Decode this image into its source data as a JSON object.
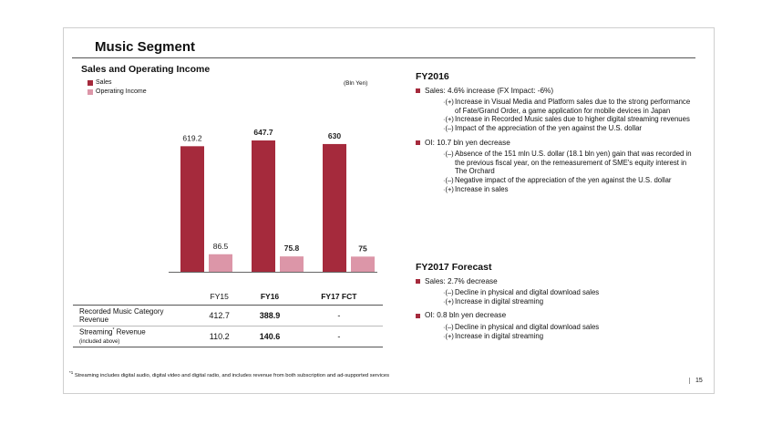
{
  "page": {
    "title": "Music Segment",
    "page_number": "15"
  },
  "chart_section": {
    "subtitle": "Sales and Operating Income",
    "unit": "(Bln Yen)"
  },
  "chart_data": {
    "type": "bar",
    "categories": [
      "FY15",
      "FY16",
      "FY17 FCT"
    ],
    "series": [
      {
        "name": "Sales",
        "values": [
          619.2,
          647.7,
          630
        ],
        "labels": [
          "619.2",
          "647.7",
          "630"
        ],
        "color": "#a52a3c"
      },
      {
        "name": "Operating Income",
        "values": [
          86.5,
          75.8,
          75
        ],
        "labels": [
          "86.5",
          "75.8",
          "75"
        ],
        "color": "#dc96a8"
      }
    ],
    "bold_label_categories": [
      "FY16",
      "FY17 FCT"
    ],
    "ylim": [
      0,
      700
    ],
    "grid": false,
    "legend": "top-left"
  },
  "table": {
    "headers": [
      "",
      "FY15",
      "FY16",
      "FY17 FCT"
    ],
    "rows": [
      {
        "label": "Recorded Music Category Revenue",
        "note": "",
        "values": [
          "412.7",
          "388.9",
          "-"
        ]
      },
      {
        "label": "Streaming",
        "sup": "*",
        "label_tail": " Revenue",
        "note": "(included above)",
        "values": [
          "110.2",
          "140.6",
          "-"
        ]
      }
    ]
  },
  "fy2016": {
    "heading": "FY2016",
    "bullets": [
      {
        "text": "Sales: 4.6% increase (FX Impact:  -6%)",
        "items": [
          {
            "mark": "·(+)",
            "text": "Increase in Visual Media and Platform sales due to the strong performance of Fate/Grand Order, a game application for mobile devices in Japan"
          },
          {
            "mark": "·(+)",
            "text": "Increase in Recorded Music sales due to higher digital streaming revenues"
          },
          {
            "mark": "·(–)",
            "text": "Impact of the appreciation of the yen against the U.S. dollar"
          }
        ]
      },
      {
        "text": "OI: 10.7 bln yen decrease",
        "items": [
          {
            "mark": "·(–)",
            "text": "Absence of the 151 mln U.S. dollar (18.1 bln yen) gain that was recorded in the previous fiscal year, on the remeasurement of SME's equity interest in The Orchard"
          },
          {
            "mark": "·(–)",
            "text": "Negative impact of the appreciation of the yen against the U.S. dollar"
          },
          {
            "mark": "·(+)",
            "text": "Increase in sales"
          }
        ]
      }
    ]
  },
  "fy2017": {
    "heading": "FY2017 Forecast",
    "bullets": [
      {
        "text": "Sales: 2.7% decrease",
        "items": [
          {
            "mark": "·(–)",
            "text": "Decline in physical and digital download sales"
          },
          {
            "mark": "·(+)",
            "text": "Increase in digital streaming"
          }
        ]
      },
      {
        "text": "OI: 0.8 bln yen decrease",
        "items": [
          {
            "mark": "·(–)",
            "text": "Decline in physical and digital download sales"
          },
          {
            "mark": "·(+)",
            "text": "Increase in digital streaming"
          }
        ]
      }
    ]
  },
  "footnote": {
    "mark": "*1",
    "text": "Streaming includes digital audio, digital video and digital radio, and includes revenue from both subscription and ad-supported services"
  }
}
